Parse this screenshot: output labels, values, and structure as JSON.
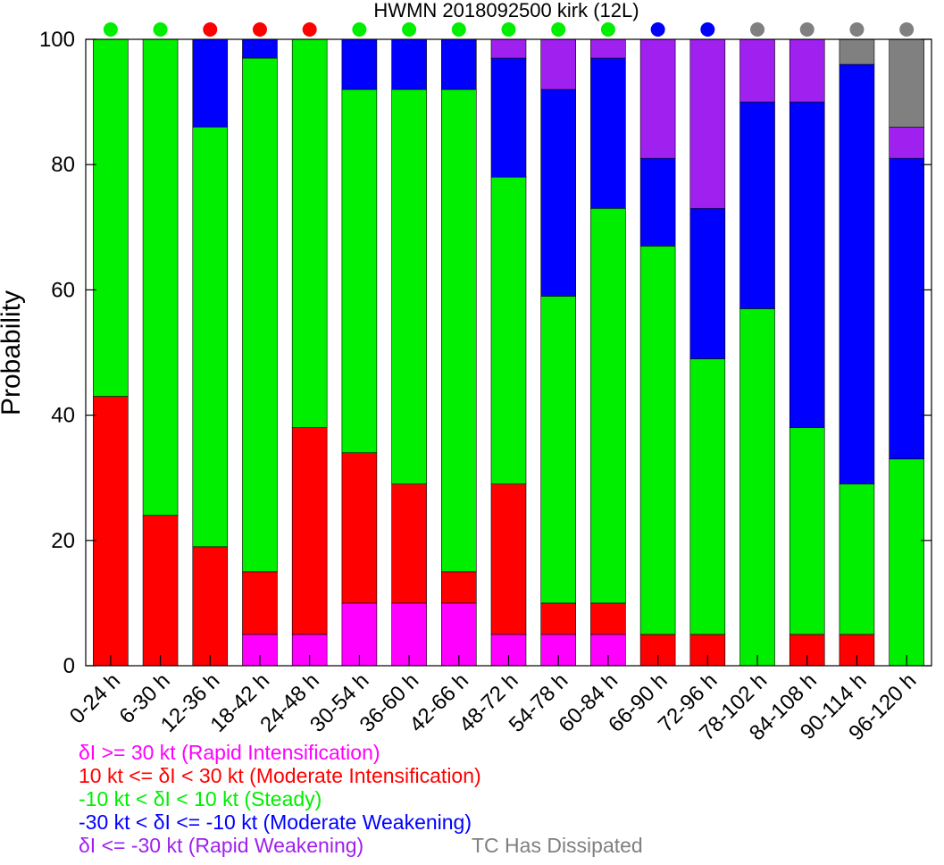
{
  "chart_data": {
    "type": "bar",
    "stacked": true,
    "title": "HWMN 2018092500 kirk (12L)",
    "ylabel": "Probability",
    "xlabel": "",
    "ylim": [
      0,
      100
    ],
    "yticks": [
      0,
      20,
      40,
      60,
      80,
      100
    ],
    "grid": false,
    "categories": [
      "0-24 h",
      "6-30 h",
      "12-36 h",
      "18-42 h",
      "24-48 h",
      "30-54 h",
      "36-60 h",
      "42-66 h",
      "48-72 h",
      "54-78 h",
      "60-84 h",
      "66-90 h",
      "72-96 h",
      "78-102 h",
      "84-108 h",
      "90-114 h",
      "96-120 h"
    ],
    "series": [
      {
        "name": "δI >= 30 kt (Rapid Intensification)",
        "color": "#ff00ff",
        "values": [
          0,
          0,
          0,
          5,
          5,
          10,
          10,
          10,
          5,
          5,
          5,
          0,
          0,
          0,
          0,
          0,
          0
        ]
      },
      {
        "name": "10 kt <= δI < 30 kt (Moderate Intensification)",
        "color": "#ff0000",
        "values": [
          43,
          24,
          19,
          10,
          33,
          24,
          19,
          5,
          24,
          5,
          5,
          5,
          5,
          0,
          5,
          5,
          0
        ]
      },
      {
        "name": "-10 kt < δI < 10 kt (Steady)",
        "color": "#00ee00",
        "values": [
          57,
          76,
          67,
          82,
          62,
          58,
          63,
          77,
          49,
          49,
          63,
          62,
          44,
          57,
          33,
          24,
          33
        ]
      },
      {
        "name": "-30 kt < δI <= -10 kt (Moderate Weakening)",
        "color": "#0000ff",
        "values": [
          0,
          0,
          14,
          3,
          0,
          8,
          8,
          8,
          19,
          33,
          24,
          14,
          24,
          33,
          52,
          67,
          48
        ]
      },
      {
        "name": "δI <= -30 kt (Rapid Weakening)",
        "color": "#a020f0",
        "values": [
          0,
          0,
          0,
          0,
          0,
          0,
          0,
          0,
          3,
          8,
          3,
          19,
          27,
          10,
          10,
          0,
          5
        ]
      },
      {
        "name": "TC Has Dissipated",
        "color": "#808080",
        "values": [
          0,
          0,
          0,
          0,
          0,
          0,
          0,
          0,
          0,
          0,
          0,
          0,
          0,
          0,
          0,
          4,
          14
        ]
      }
    ],
    "dot_colors": [
      "#00ee00",
      "#00ee00",
      "#ff0000",
      "#ff0000",
      "#ff0000",
      "#00ee00",
      "#00ee00",
      "#00ee00",
      "#00ee00",
      "#00ee00",
      "#00ee00",
      "#0000ff",
      "#0000ff",
      "#808080",
      "#808080",
      "#808080",
      "#808080"
    ],
    "legend": {
      "placement": "bottom-left",
      "entries": [
        {
          "label": "δI >= 30 kt (Rapid Intensification)",
          "color": "#ff00ff"
        },
        {
          "label": "10 kt <= δI < 30 kt (Moderate Intensification)",
          "color": "#ff0000"
        },
        {
          "label": "-10 kt < δI < 10 kt (Steady)",
          "color": "#00ee00"
        },
        {
          "label": "-30 kt < δI <= -10 kt (Moderate Weakening)",
          "color": "#0000ff"
        },
        {
          "label": "δI <= -30 kt (Rapid Weakening)",
          "color": "#a020f0"
        },
        {
          "label": "TC Has Dissipated",
          "color": "#808080"
        }
      ]
    }
  }
}
